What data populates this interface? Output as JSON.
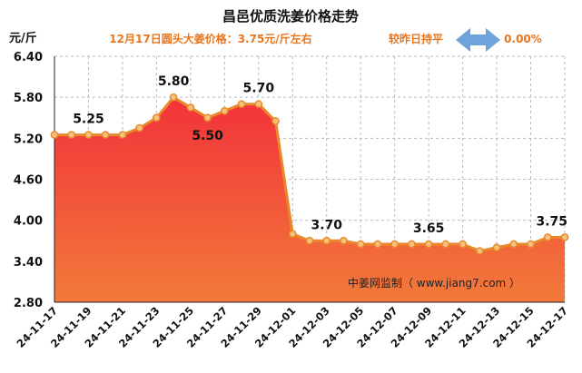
{
  "chart_data": {
    "type": "area",
    "title": "昌邑优质洗姜价格走势",
    "ylabel": "元/斤",
    "subtitle_left": "12月17日圆头大姜价格：3.75元/斤左右",
    "subtitle_right": "较昨日持平",
    "change_value": "0.00%",
    "watermark": "中姜网监制（ www.jiang7.com ）",
    "ylim": [
      2.8,
      6.4
    ],
    "yticks": [
      "6.40",
      "5.80",
      "5.20",
      "4.60",
      "4.00",
      "3.40",
      "2.80"
    ],
    "grid": true,
    "x": [
      "24-11-17",
      "24-11-18",
      "24-11-19",
      "24-11-20",
      "24-11-21",
      "24-11-22",
      "24-11-23",
      "24-11-24",
      "24-11-25",
      "24-11-26",
      "24-11-27",
      "24-11-28",
      "24-11-29",
      "24-11-30",
      "24-12-01",
      "24-12-02",
      "24-12-03",
      "24-12-04",
      "24-12-05",
      "24-12-06",
      "24-12-07",
      "24-12-08",
      "24-12-09",
      "24-12-10",
      "24-12-11",
      "24-12-12",
      "24-12-13",
      "24-12-14",
      "24-12-15",
      "24-12-16",
      "24-12-17"
    ],
    "xticks": [
      "24-11-17",
      "24-11-19",
      "24-11-21",
      "24-11-23",
      "24-11-25",
      "24-11-27",
      "24-11-29",
      "24-12-01",
      "24-12-03",
      "24-12-05",
      "24-12-07",
      "24-12-09",
      "24-12-11",
      "24-12-13",
      "24-12-15",
      "24-12-17"
    ],
    "values": [
      5.25,
      5.25,
      5.25,
      5.25,
      5.25,
      5.35,
      5.5,
      5.8,
      5.65,
      5.5,
      5.6,
      5.7,
      5.7,
      5.45,
      3.8,
      3.7,
      3.7,
      3.7,
      3.65,
      3.65,
      3.65,
      3.65,
      3.65,
      3.65,
      3.65,
      3.55,
      3.6,
      3.65,
      3.65,
      3.75,
      3.75
    ],
    "data_labels": [
      {
        "index": 2,
        "text": "5.25"
      },
      {
        "index": 7,
        "text": "5.80"
      },
      {
        "index": 9,
        "text": "5.50"
      },
      {
        "index": 12,
        "text": "5.70"
      },
      {
        "index": 16,
        "text": "3.70"
      },
      {
        "index": 22,
        "text": "3.65"
      },
      {
        "index": 30,
        "text": "3.75"
      }
    ],
    "colors": {
      "line": "#e88a2c",
      "marker_fill": "#f4c27c",
      "fill_top": "#f2323a",
      "fill_bottom": "#f27a3a",
      "grid": "#bbbbbb",
      "subtitle": "#e8761e",
      "arrow": "#6fa3dc"
    }
  }
}
